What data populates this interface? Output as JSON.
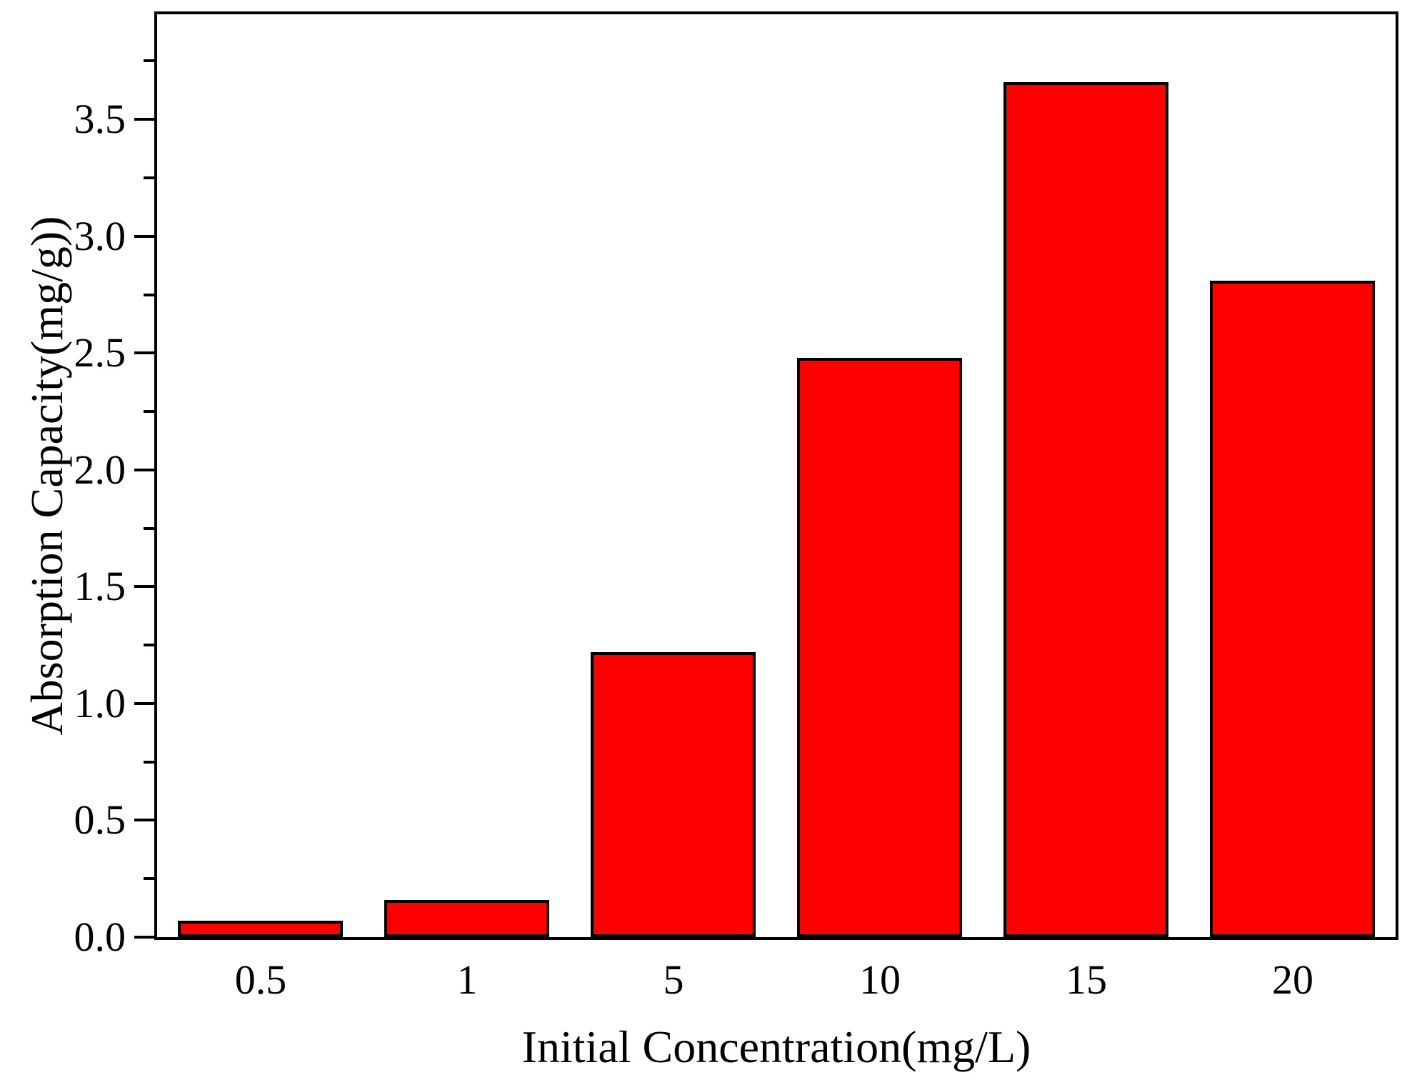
{
  "chart_data": {
    "type": "bar",
    "categories": [
      "0.5",
      "1",
      "5",
      "10",
      "15",
      "20"
    ],
    "values": [
      0.07,
      0.16,
      1.22,
      2.48,
      3.66,
      2.81
    ],
    "title": "",
    "xlabel": "Initial Concentration(mg/L)",
    "ylabel": "Absorption Capacity(mg/g))",
    "ylim": [
      0,
      3.95
    ],
    "y_major_tick_labels": [
      "0.0",
      "0.5",
      "1.0",
      "1.5",
      "2.0",
      "2.5",
      "3.0",
      "3.5"
    ],
    "y_major_step": 0.5,
    "y_minor_step": 0.25,
    "y_minor_max": 3.75,
    "grid": false,
    "legend": null,
    "bar_fill_color": "#ff0000",
    "bar_border_color": "#000000",
    "axis_color": "#000000",
    "text_color": "#000000",
    "background_color": "#ffffff"
  }
}
